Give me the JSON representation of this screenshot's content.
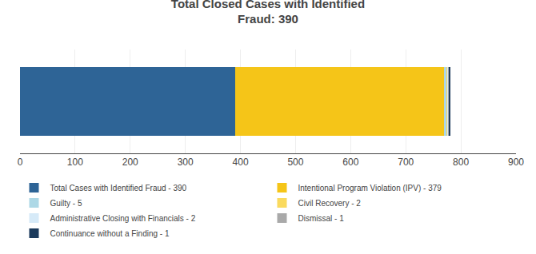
{
  "chart_data": {
    "type": "bar",
    "orientation": "horizontal",
    "stacked": true,
    "title": "Total Closed Cases with Identified\nFraud: 390",
    "categories": [
      null
    ],
    "series": [
      {
        "name": "Total Cases with Identified Fraud - 390",
        "color": "#2E6496",
        "values": [
          390
        ]
      },
      {
        "name": "Intentional Program Violation (IPV) - 379",
        "color": "#F5C518",
        "values": [
          379
        ]
      },
      {
        "name": "Guilty - 5",
        "color": "#ADD8E6",
        "values": [
          5
        ]
      },
      {
        "name": "Civil Recovery - 2",
        "color": "#FADA5E",
        "values": [
          2
        ]
      },
      {
        "name": "Administrative Closing with Financials - 2",
        "color": "#D6EAF8",
        "values": [
          2
        ]
      },
      {
        "name": "Dismissal - 1",
        "color": "#A9A9A9",
        "values": [
          1
        ]
      },
      {
        "name": "Continuance without a Finding - 1",
        "color": "#1B3A5C",
        "values": [
          1
        ]
      }
    ],
    "xlim": [
      0,
      900
    ],
    "xticks": [
      0,
      100,
      200,
      300,
      400,
      500,
      600,
      700,
      800,
      900
    ],
    "grid": true,
    "legend": "bottom",
    "tick_labels": "x"
  }
}
